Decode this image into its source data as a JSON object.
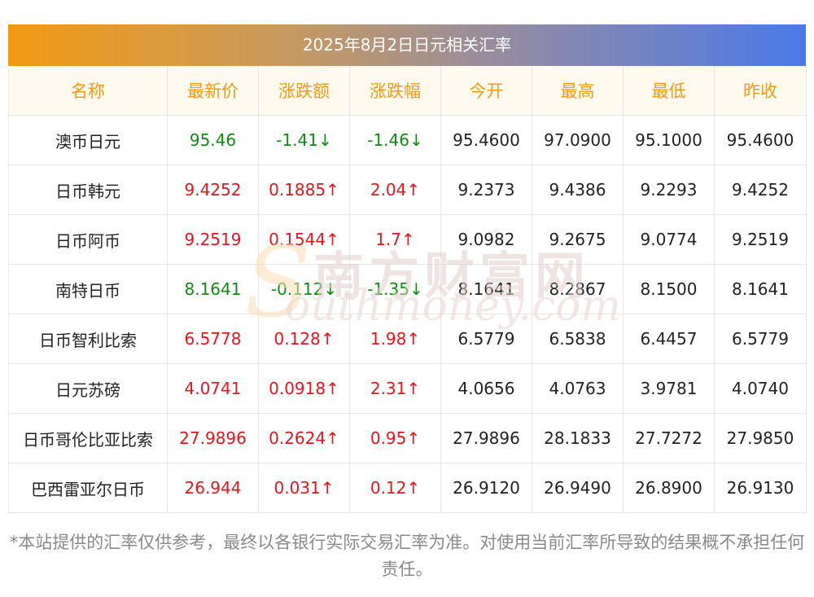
{
  "title": "2025年8月2日日元相关汇率",
  "colors": {
    "up": "#e8141b",
    "down": "#118a11",
    "header_text": "#f39a12",
    "title_gradient_start": "#f39a12",
    "title_gradient_end": "#4a7ae8"
  },
  "headers": [
    "名称",
    "最新价",
    "涨跌额",
    "涨跌幅",
    "今开",
    "最高",
    "最低",
    "昨收"
  ],
  "rows": [
    {
      "name": "澳币日元",
      "latest": "95.46",
      "change": "-1.41↓",
      "pct": "-1.46↓",
      "open": "95.4600",
      "high": "97.0900",
      "low": "95.1000",
      "prev": "95.4600",
      "trend": "down"
    },
    {
      "name": "日币韩元",
      "latest": "9.4252",
      "change": "0.1885↑",
      "pct": "2.04↑",
      "open": "9.2373",
      "high": "9.4386",
      "low": "9.2293",
      "prev": "9.4252",
      "trend": "up"
    },
    {
      "name": "日币阿币",
      "latest": "9.2519",
      "change": "0.1544↑",
      "pct": "1.7↑",
      "open": "9.0982",
      "high": "9.2675",
      "low": "9.0774",
      "prev": "9.2519",
      "trend": "up"
    },
    {
      "name": "南特日币",
      "latest": "8.1641",
      "change": "-0.112↓",
      "pct": "-1.35↓",
      "open": "8.1641",
      "high": "8.2867",
      "low": "8.1500",
      "prev": "8.1641",
      "trend": "down"
    },
    {
      "name": "日币智利比索",
      "latest": "6.5778",
      "change": "0.128↑",
      "pct": "1.98↑",
      "open": "6.5779",
      "high": "6.5838",
      "low": "6.4457",
      "prev": "6.5779",
      "trend": "up"
    },
    {
      "name": "日元苏磅",
      "latest": "4.0741",
      "change": "0.0918↑",
      "pct": "2.31↑",
      "open": "4.0656",
      "high": "4.0763",
      "low": "3.9781",
      "prev": "4.0740",
      "trend": "up"
    },
    {
      "name": "日币哥伦比亚比索",
      "latest": "27.9896",
      "change": "0.2624↑",
      "pct": "0.95↑",
      "open": "27.9896",
      "high": "28.1833",
      "low": "27.7272",
      "prev": "27.9850",
      "trend": "up"
    },
    {
      "name": "巴西雷亚尔日币",
      "latest": "26.944",
      "change": "0.031↑",
      "pct": "0.12↑",
      "open": "26.9120",
      "high": "26.9490",
      "low": "26.8900",
      "prev": "26.9130",
      "trend": "up"
    }
  ],
  "watermark": {
    "cn": "南方财富网",
    "en": "outhmoney.com",
    "s": "S"
  },
  "note": "*本站提供的汇率仅供参考，最终以各银行实际交易汇率为准。对使用当前汇率所导致的结果概不承担任何责任。"
}
